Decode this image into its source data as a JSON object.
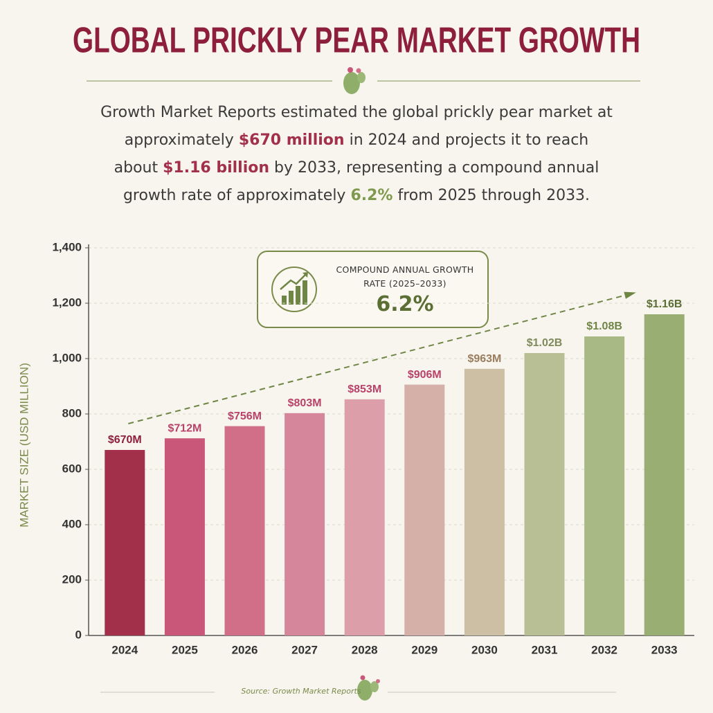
{
  "chart_data": {
    "type": "bar",
    "title": "GLOBAL PRICKLY PEAR MARKET GROWTH",
    "description": [
      "Growth Market Reports estimated the global prickly pear market at approximately ",
      "$670 million",
      " in 2024 and projects it to reach about ",
      "$1.16 billion",
      " by 2033, representing a compound annual growth rate of approximately ",
      "6.2%",
      " from 2025 through 2033."
    ],
    "ylabel": "MARKET SIZE (USD MILLION)",
    "categories": [
      "2024",
      "2025",
      "2026",
      "2027",
      "2028",
      "2029",
      "2030",
      "2031",
      "2032",
      "2033"
    ],
    "values": [
      670,
      712,
      756,
      803,
      853,
      906,
      963,
      1020,
      1080,
      1160
    ],
    "value_labels": [
      "$670M",
      "$712M",
      "$756M",
      "$803M",
      "$853M",
      "$906M",
      "$963M",
      "$1.02B",
      "$1.08B",
      "$1.16B"
    ],
    "colors": [
      "#a3304a",
      "#c9577a",
      "#d06f87",
      "#d6869a",
      "#dc9ea8",
      "#d4b0a8",
      "#ccbfa4",
      "#b8bf94",
      "#a8b985",
      "#98ae72"
    ],
    "value_label_colors": [
      "#8e1f3a",
      "#b8426a",
      "#b8426a",
      "#b8426a",
      "#b8426a",
      "#b8426a",
      "#9a7d5e",
      "#7f8a5a",
      "#6f8545",
      "#5b6e34"
    ],
    "ylim": [
      0,
      1400
    ],
    "yticks": [
      0,
      200,
      400,
      600,
      800,
      {
        "value": 1000,
        "label": "1,000"
      },
      {
        "value": 1200,
        "label": "1,200"
      },
      {
        "value": 1400,
        "label": "1,400"
      }
    ],
    "grid": true,
    "annotation": {
      "label": "COMPOUND ANNUAL GROWTH RATE (2025–2033)",
      "value": "6.2%"
    },
    "source": "Source: Growth Market Reports"
  }
}
